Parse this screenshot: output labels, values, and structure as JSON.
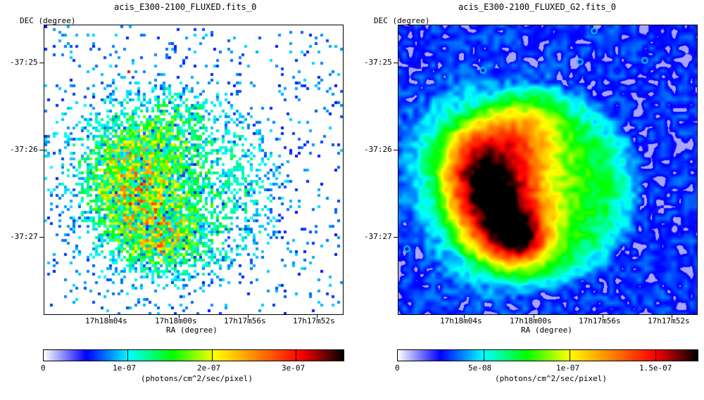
{
  "panels": [
    {
      "title": "acis_E300-2100_FLUXED.fits_0",
      "ylabel": "DEC (degree)",
      "xlabel": "RA (degree)",
      "yticks": [
        "-37:25",
        "-37:26",
        "-37:27"
      ],
      "xticks": [
        "17h18m04s",
        "17h18m00s",
        "17h17m56s",
        "17h17m52s"
      ],
      "colorbar_ticks": [
        "0",
        "1e-07",
        "2e-07",
        "3e-07"
      ],
      "colorbar_label": "(photons/cm^2/sec/pixel)",
      "style": "sparse"
    },
    {
      "title": "acis_E300-2100_FLUXED_G2.fits_0",
      "ylabel": "DEC (degree)",
      "xlabel": "RA (degree)",
      "yticks": [
        "-37:25",
        "-37:26",
        "-37:27"
      ],
      "xticks": [
        "17h18m04s",
        "17h18m00s",
        "17h17m56s",
        "17h17m52s"
      ],
      "colorbar_ticks": [
        "0",
        "5e-08",
        "1e-07",
        "1.5e-07"
      ],
      "colorbar_label": "(photons/cm^2/sec/pixel)",
      "style": "smooth"
    }
  ],
  "colormap": [
    "#ffffff",
    "#0000ff",
    "#00ffff",
    "#00ff00",
    "#ffff00",
    "#ff8000",
    "#ff0000",
    "#000000"
  ]
}
